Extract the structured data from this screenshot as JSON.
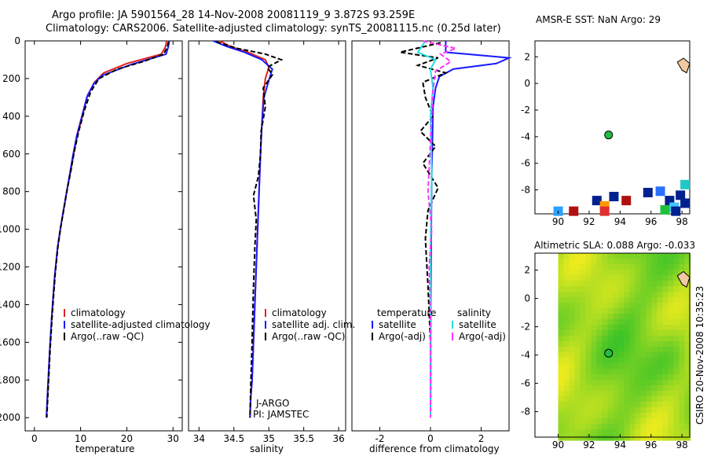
{
  "figure": {
    "title_line1": "Argo profile: JA 5901564_28 14-Nov-2008 20081119_9 3.872S 93.259E",
    "title_line2": "Climatology: CARS2006. Satellite-adjusted climatology: synTS_20081115.nc (0.25d later)",
    "footer": "CSIRO 20-Nov-2008 10:35:23",
    "colors": {
      "climatology": "#e02020",
      "satellite": "#1a1aff",
      "argo": "#000000",
      "salinity_sat": "#22e0e0",
      "salinity_argo": "#ff33ff"
    }
  },
  "chart_data": [
    {
      "id": "temperature",
      "type": "line",
      "xlabel": "temperature",
      "xlim": [
        -2,
        32
      ],
      "ylim": [
        2070,
        0
      ],
      "xticks": [
        0,
        10,
        20,
        30
      ],
      "yticks": [
        0,
        200,
        400,
        600,
        800,
        1000,
        1200,
        1400,
        1600,
        1800,
        2000
      ],
      "legend": [
        "climatology",
        "satellite-adjusted climatology",
        "Argo(..raw -QC)"
      ],
      "series": [
        {
          "name": "climatology",
          "color": "#e02020",
          "style": "solid",
          "x": [
            28.6,
            28.4,
            27.5,
            20.0,
            15.0,
            13.0,
            11.5,
            10.5,
            9.3,
            8.5,
            7.8,
            7.0,
            6.3,
            5.6,
            5.0,
            4.4,
            3.8,
            3.3,
            2.9,
            2.6
          ],
          "y": [
            0,
            30,
            70,
            120,
            170,
            220,
            290,
            390,
            500,
            600,
            700,
            800,
            900,
            1000,
            1100,
            1250,
            1450,
            1650,
            1850,
            2000
          ]
        },
        {
          "name": "satellite-adjusted climatology",
          "color": "#1a1aff",
          "style": "solid",
          "x": [
            29.2,
            29.0,
            28.5,
            21.0,
            14.5,
            12.8,
            11.4,
            10.4,
            9.2,
            8.4,
            7.7,
            7.0,
            6.3,
            5.6,
            5.0,
            4.4,
            3.8,
            3.3,
            2.9,
            2.6
          ],
          "y": [
            0,
            30,
            70,
            125,
            185,
            230,
            295,
            390,
            500,
            600,
            700,
            800,
            900,
            1000,
            1100,
            1250,
            1450,
            1650,
            1850,
            2000
          ]
        },
        {
          "name": "Argo(..raw -QC)",
          "color": "#000000",
          "style": "dashed",
          "x": [
            29.0,
            28.8,
            28.0,
            23.5,
            18.0,
            14.0,
            12.2,
            10.8,
            9.6,
            8.6,
            7.9,
            7.1,
            6.4,
            5.7,
            5.1,
            4.5,
            3.9,
            3.4,
            3.0,
            2.7
          ],
          "y": [
            5,
            30,
            70,
            110,
            150,
            200,
            270,
            370,
            480,
            590,
            690,
            790,
            890,
            990,
            1090,
            1240,
            1440,
            1640,
            1840,
            2000
          ]
        }
      ]
    },
    {
      "id": "salinity",
      "type": "line",
      "xlabel": "salinity",
      "xlim": [
        33.85,
        36.1
      ],
      "ylim": [
        2070,
        0
      ],
      "xticks": [
        34,
        34.5,
        35,
        35.5,
        36
      ],
      "legend": [
        "climatology",
        "satellite adj. clim.",
        "Argo(..raw -QC)"
      ],
      "annotations": [
        "J-ARGO",
        "PI: JAMSTEC"
      ],
      "series": [
        {
          "name": "climatology",
          "color": "#e02020",
          "style": "solid",
          "x": [
            34.3,
            34.45,
            34.7,
            34.95,
            35.0,
            34.95,
            34.92,
            34.9,
            34.88,
            34.86,
            34.84,
            34.82,
            34.8,
            34.78,
            34.76,
            34.74,
            34.73
          ],
          "y": [
            0,
            30,
            60,
            100,
            140,
            200,
            300,
            450,
            600,
            800,
            1000,
            1200,
            1400,
            1600,
            1800,
            1900,
            2000
          ]
        },
        {
          "name": "satellite adj. clim.",
          "color": "#1a1aff",
          "style": "solid",
          "x": [
            34.2,
            34.4,
            34.65,
            34.9,
            35.05,
            35.0,
            34.93,
            34.9,
            34.88,
            34.86,
            34.84,
            34.82,
            34.8,
            34.78,
            34.76,
            34.74,
            34.73
          ],
          "y": [
            0,
            30,
            60,
            100,
            150,
            210,
            300,
            450,
            600,
            800,
            1000,
            1200,
            1400,
            1600,
            1800,
            1900,
            2000
          ]
        },
        {
          "name": "Argo(..raw -QC)",
          "color": "#000000",
          "style": "dashed",
          "x": [
            34.25,
            34.55,
            34.95,
            35.18,
            34.98,
            35.05,
            34.92,
            34.95,
            34.89,
            34.88,
            34.85,
            34.78,
            34.82,
            34.8,
            34.78,
            34.76,
            34.74,
            34.73
          ],
          "y": [
            5,
            40,
            70,
            100,
            140,
            180,
            250,
            350,
            480,
            600,
            720,
            820,
            950,
            1100,
            1300,
            1600,
            1850,
            2000
          ]
        }
      ]
    },
    {
      "id": "difference",
      "type": "line",
      "xlabel": "difference from climatology",
      "xlim": [
        -3.1,
        3.1
      ],
      "ylim": [
        2070,
        0
      ],
      "xticks": [
        -2,
        0,
        2
      ],
      "legend": [
        "temperature",
        "satellite",
        "Argo(-adj)",
        "salinity",
        "satellite",
        "Argo(-adj)"
      ],
      "series": [
        {
          "name": "temperature satellite",
          "color": "#1a1aff",
          "style": "solid",
          "x": [
            0.6,
            0.6,
            3.1,
            2.6,
            0.9,
            0.35,
            0.2,
            0.1,
            0.08,
            0.05,
            0.03,
            0.02,
            0.01,
            0.0
          ],
          "y": [
            0,
            60,
            90,
            120,
            150,
            190,
            250,
            350,
            500,
            700,
            1000,
            1400,
            1800,
            2000
          ]
        },
        {
          "name": "temperature Argo(-adj)",
          "color": "#000000",
          "style": "dashed",
          "x": [
            0.4,
            -1.2,
            0.3,
            -0.5,
            0.6,
            -0.3,
            -0.2,
            0.1,
            -0.4,
            0.2,
            -0.3,
            0.3,
            -0.1,
            -0.2,
            -0.1,
            0.0,
            0.0
          ],
          "y": [
            10,
            60,
            90,
            130,
            170,
            220,
            300,
            400,
            480,
            560,
            650,
            780,
            900,
            1050,
            1300,
            1600,
            2000
          ]
        },
        {
          "name": "salinity satellite",
          "color": "#22e0e0",
          "style": "solid",
          "x": [
            -0.2,
            -0.5,
            0.2,
            0.0,
            0.1,
            0.0,
            0.05,
            0.0,
            0.02,
            0.0
          ],
          "y": [
            0,
            60,
            100,
            150,
            250,
            400,
            700,
            1100,
            1500,
            2000
          ]
        },
        {
          "name": "salinity Argo(-adj)",
          "color": "#ff33ff",
          "style": "dashed",
          "x": [
            -0.3,
            1.0,
            0.4,
            0.8,
            0.2,
            0.1,
            -0.1,
            0.05,
            -0.05,
            0.0,
            0.0
          ],
          "y": [
            0,
            40,
            70,
            110,
            160,
            260,
            800,
            1000,
            1200,
            1500,
            2000
          ]
        }
      ]
    },
    {
      "id": "amsre_sst_map",
      "type": "heatmap",
      "title": "AMSR-E SST: NaN Argo: 29",
      "xlim": [
        88.5,
        98.5
      ],
      "ylim": [
        -9.8,
        3.2
      ],
      "xticks": [
        90,
        92,
        94,
        96,
        98
      ],
      "yticks": [
        -8,
        -6,
        -4,
        -2,
        0,
        2
      ],
      "argo_position": {
        "lon": 93.259,
        "lat": -3.872
      },
      "cells": [
        {
          "lon": 90.0,
          "lat": -9.6,
          "color": "#2aa0ff"
        },
        {
          "lon": 91.0,
          "lat": -9.6,
          "color": "#b01010"
        },
        {
          "lon": 92.5,
          "lat": -8.8,
          "color": "#00208f"
        },
        {
          "lon": 93.0,
          "lat": -9.2,
          "color": "#ff9900"
        },
        {
          "lon": 93.0,
          "lat": -9.6,
          "color": "#e03030"
        },
        {
          "lon": 93.6,
          "lat": -8.5,
          "color": "#00208f"
        },
        {
          "lon": 94.4,
          "lat": -8.8,
          "color": "#b01010"
        },
        {
          "lon": 95.8,
          "lat": -8.2,
          "color": "#00208f"
        },
        {
          "lon": 96.6,
          "lat": -8.1,
          "color": "#2a6fff"
        },
        {
          "lon": 97.2,
          "lat": -8.8,
          "color": "#00208f"
        },
        {
          "lon": 96.9,
          "lat": -9.5,
          "color": "#20c040"
        },
        {
          "lon": 97.5,
          "lat": -9.3,
          "color": "#40c8ff"
        },
        {
          "lon": 97.9,
          "lat": -8.4,
          "color": "#00208f"
        },
        {
          "lon": 98.2,
          "lat": -9.0,
          "color": "#00208f"
        },
        {
          "lon": 98.2,
          "lat": -7.6,
          "color": "#20c8c8"
        },
        {
          "lon": 97.6,
          "lat": -9.6,
          "color": "#00208f"
        }
      ]
    },
    {
      "id": "altimetric_sla_map",
      "type": "heatmap",
      "title": "Altimetric SLA: 0.088 Argo: -0.033",
      "xlim": [
        88.5,
        98.5
      ],
      "ylim": [
        -9.8,
        3.2
      ],
      "xticks": [
        90,
        92,
        94,
        96,
        98
      ],
      "yticks": [
        -8,
        -6,
        -4,
        -2,
        0,
        2
      ],
      "data_lon_min": 90.0,
      "argo_position": {
        "lon": 93.259,
        "lat": -3.872
      }
    }
  ]
}
